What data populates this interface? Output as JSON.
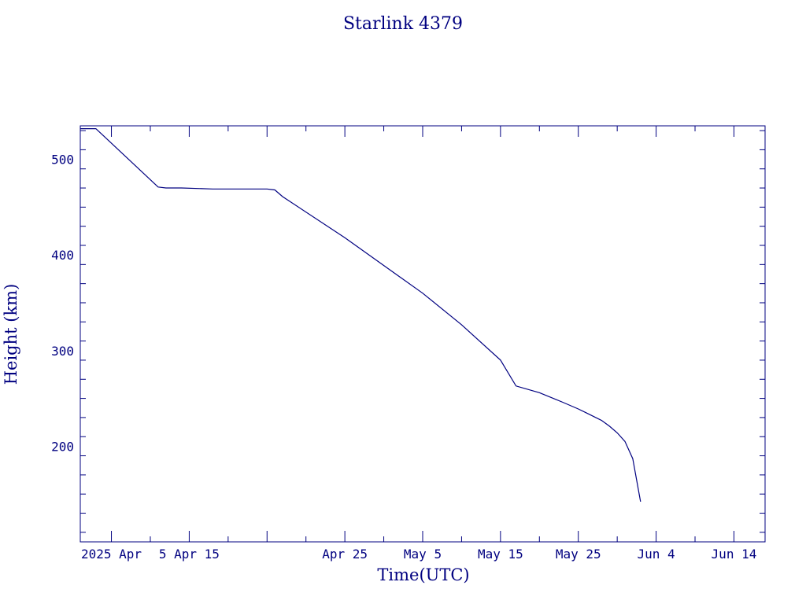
{
  "chart_data": {
    "type": "line",
    "title": "Starlink 4379",
    "xlabel": "Time(UTC)",
    "ylabel": "Height (km)",
    "color": "#000080",
    "xlim": [
      "2025-03-22",
      "2025-06-18"
    ],
    "ylim": [
      100,
      535
    ],
    "x_ticks": [
      {
        "date": "2025-03-26",
        "label": "2025 Apr"
      },
      {
        "date": "2025-04-05",
        "label": " 5 Apr 15"
      },
      {
        "date": "2025-04-25",
        "label": "Apr 25"
      },
      {
        "date": "2025-05-05",
        "label": "May  5"
      },
      {
        "date": "2025-05-15",
        "label": "May 15"
      },
      {
        "date": "2025-05-25",
        "label": "May 25"
      },
      {
        "date": "2025-06-04",
        "label": "Jun  4"
      },
      {
        "date": "2025-06-14",
        "label": "Jun 14"
      }
    ],
    "y_ticks": [
      200,
      300,
      400,
      500
    ],
    "grid": false,
    "series": [
      {
        "x": [
          "2025-03-22",
          "2025-03-23",
          "2025-03-24",
          "2025-04-01",
          "2025-04-02",
          "2025-04-04",
          "2025-04-08",
          "2025-04-14",
          "2025-04-15",
          "2025-04-16",
          "2025-04-17",
          "2025-04-25",
          "2025-05-05",
          "2025-05-10",
          "2025-05-15",
          "2025-05-17",
          "2025-05-20",
          "2025-05-23",
          "2025-05-25",
          "2025-05-26",
          "2025-05-28",
          "2025-05-29",
          "2025-05-30",
          "2025-05-31",
          "2025-06-01",
          "2025-06-02"
        ],
        "y": [
          532,
          532,
          532,
          471,
          470,
          470,
          469,
          469,
          469,
          468,
          461,
          418,
          360,
          327,
          290,
          263,
          256,
          246,
          239,
          235,
          227,
          221,
          214,
          205,
          187,
          142
        ]
      }
    ]
  }
}
